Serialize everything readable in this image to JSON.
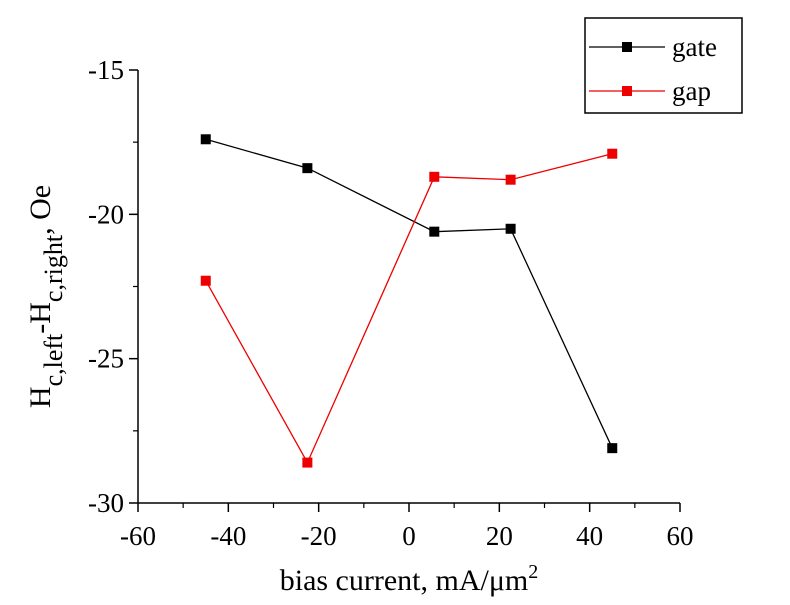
{
  "chart_data": {
    "type": "line",
    "title": "",
    "xlabel": "bias current, mA/μm",
    "xlabel_sup": "2",
    "ylabel": {
      "parts": [
        {
          "text": "H",
          "style": "normal"
        },
        {
          "text": "c,left",
          "style": "sub"
        },
        {
          "text": "-H",
          "style": "normal"
        },
        {
          "text": "c,right",
          "style": "sub"
        },
        {
          "text": ", Oe",
          "style": "normal"
        }
      ]
    },
    "xlim": [
      -60,
      60
    ],
    "ylim": [
      -30,
      -15
    ],
    "x_ticks": [
      -60,
      -40,
      -20,
      0,
      20,
      40,
      60
    ],
    "x_tick_labels": [
      "-60",
      "-40",
      "-20",
      "0",
      "20",
      "40",
      "60"
    ],
    "y_ticks": [
      -30,
      -25,
      -20,
      -15
    ],
    "y_tick_labels": [
      "-30",
      "-25",
      "-20",
      "-15"
    ],
    "grid": false,
    "legend_position": "top-right",
    "series": [
      {
        "name": "gate",
        "color": "#000000",
        "marker": "square",
        "x": [
          -45,
          -22.5,
          5.6,
          22.5,
          45
        ],
        "y": [
          -17.4,
          -18.4,
          -20.6,
          -20.5,
          -28.1
        ]
      },
      {
        "name": "gap",
        "color": "#ee0000",
        "marker": "square",
        "x": [
          -45,
          -22.5,
          5.6,
          22.5,
          45
        ],
        "y": [
          -22.3,
          -28.6,
          -18.7,
          -18.8,
          -17.9
        ]
      }
    ]
  }
}
